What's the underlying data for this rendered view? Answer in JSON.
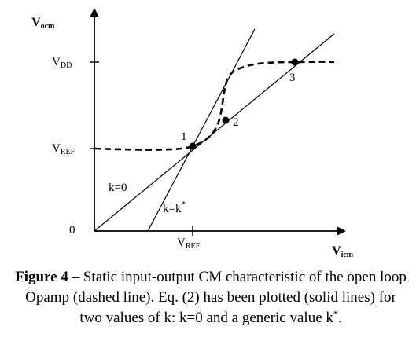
{
  "figure": {
    "y_axis_label": {
      "main": "V",
      "sub": "ocm"
    },
    "x_axis_label": {
      "main": "V",
      "sub": "icm"
    },
    "origin_label": "0",
    "y_ticks": [
      {
        "main": "V",
        "sub": "DD"
      },
      {
        "main": "V",
        "sub": "REF"
      }
    ],
    "x_ticks": [
      {
        "main": "V",
        "sub": "REF"
      }
    ],
    "points": [
      {
        "label": "1"
      },
      {
        "label": "2"
      },
      {
        "label": "3"
      }
    ],
    "line_labels": {
      "k0": "k=0",
      "kstar_main": "k=k",
      "kstar_sup": "*"
    },
    "legend_notes": {
      "dashed": "dashed line = Static input-output CM characteristic",
      "solid": "solid lines = Eq. (2)"
    }
  },
  "caption": {
    "fig_label": "Figure 4",
    "text_part1": " – Static input-output CM characteristic of the open loop Opamp (dashed line). Eq. (2) has been plotted (solid lines) for two values of k: k=0 and a generic value k",
    "sup": "*",
    "text_part2": "."
  }
}
